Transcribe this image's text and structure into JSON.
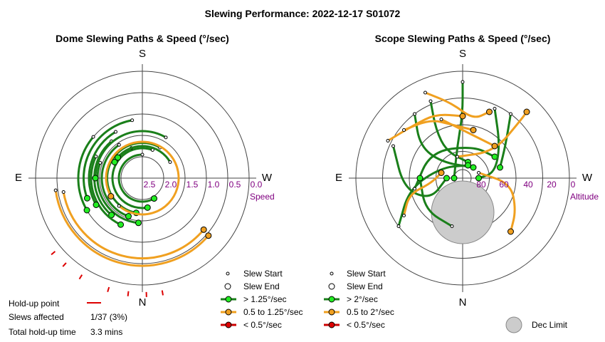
{
  "title": "Slewing Performance: 2022-12-17 S01072",
  "chart_data": [
    {
      "type": "polar-paths",
      "title": "Dome Slewing Paths & Speed (°/sec)",
      "directions": {
        "top": "S",
        "bottom": "N",
        "left": "E",
        "right": "W"
      },
      "radial_axis_label": "Speed",
      "radial_ticks": [
        "2.5",
        "2.0",
        "1.5",
        "1.0",
        "0.5",
        "0.0"
      ],
      "colors": {
        "fast": "#1a7f1a",
        "medium": "#f0a020",
        "slow": "#cc0000",
        "holdup": "#dd0000"
      },
      "legend": [
        {
          "key": "slew_start",
          "label": "Slew Start"
        },
        {
          "key": "slew_end",
          "label": "Slew End"
        },
        {
          "key": "fast",
          "label": "> 1.25°/sec"
        },
        {
          "key": "medium",
          "label": "0.5 to 1.25°/sec"
        },
        {
          "key": "slow",
          "label": "< 0.5°/sec"
        }
      ],
      "arcs": [
        {
          "r": 0.22,
          "a0": 270,
          "a1": 60,
          "cls": "fast"
        },
        {
          "r": 0.28,
          "a0": 290,
          "a1": 80,
          "cls": "fast"
        },
        {
          "r": 0.33,
          "a0": 300,
          "a1": 100,
          "cls": "fast"
        },
        {
          "r": 0.38,
          "a0": 235,
          "a1": 110,
          "cls": "fast"
        },
        {
          "r": 0.42,
          "a0": 200,
          "a1": 95,
          "cls": "fast"
        },
        {
          "r": 0.45,
          "a0": 230,
          "a1": 130,
          "cls": "fast"
        },
        {
          "r": 0.48,
          "a0": 205,
          "a1": 115,
          "cls": "fast"
        },
        {
          "r": 0.5,
          "a0": 240,
          "a1": 150,
          "cls": "fast"
        },
        {
          "r": 0.6,
          "a0": 220,
          "a1": 150,
          "cls": "fast"
        },
        {
          "r": 0.55,
          "a0": 260,
          "a1": 160,
          "cls": "fast"
        },
        {
          "r": 0.44,
          "a0": 300,
          "a1": 180,
          "cls": "fast"
        },
        {
          "r": 0.3,
          "a0": 250,
          "a1": 210,
          "cls": "fast"
        },
        {
          "r": 0.3,
          "a0": 330,
          "a1": 220,
          "cls": "fast"
        },
        {
          "r": 0.34,
          "a0": 130,
          "a1": 150,
          "cls": "medium"
        },
        {
          "r": 0.82,
          "a0": 172,
          "a1": 41,
          "cls": "medium"
        },
        {
          "r": 0.75,
          "a0": 170,
          "a1": 40,
          "cls": "medium"
        }
      ],
      "holdup_angles": [
        100,
        92,
        83,
        73,
        58,
        48,
        40
      ]
    },
    {
      "type": "polar-paths",
      "title": "Scope Slewing Paths & Speed (°/sec)",
      "directions": {
        "top": "S",
        "bottom": "N",
        "left": "E",
        "right": "W"
      },
      "radial_axis_label": "Altitude",
      "radial_ticks": [
        "80",
        "60",
        "40",
        "20",
        "0"
      ],
      "colors": {
        "fast": "#1a7f1a",
        "medium": "#f0a020",
        "slow": "#cc0000",
        "dec_limit": "#cccccc"
      },
      "legend": [
        {
          "key": "slew_start",
          "label": "Slew Start"
        },
        {
          "key": "slew_end",
          "label": "Slew End"
        },
        {
          "key": "fast",
          "label": "> 2°/sec"
        },
        {
          "key": "medium",
          "label": "0.5 to 2°/sec"
        },
        {
          "key": "slow",
          "label": "< 0.5°/sec"
        }
      ],
      "dec_limit_label": "Dec Limit",
      "paths": [
        {
          "cls": "fast",
          "pts": [
            [
              0,
              -0.9
            ],
            [
              0,
              -0.6
            ],
            [
              -0.05,
              -0.3
            ],
            [
              -0.08,
              0.0
            ]
          ]
        },
        {
          "cls": "fast",
          "pts": [
            [
              -0.3,
              -0.72
            ],
            [
              -0.25,
              -0.45
            ],
            [
              -0.15,
              -0.25
            ],
            [
              0.05,
              -0.15
            ]
          ]
        },
        {
          "cls": "fast",
          "pts": [
            [
              -0.45,
              -0.6
            ],
            [
              -0.4,
              -0.3
            ],
            [
              -0.2,
              -0.15
            ],
            [
              0.1,
              -0.1
            ]
          ]
        },
        {
          "cls": "fast",
          "pts": [
            [
              -0.65,
              -0.3
            ],
            [
              -0.55,
              0.1
            ],
            [
              -0.3,
              0.2
            ],
            [
              -0.15,
              0.0
            ]
          ]
        },
        {
          "cls": "fast",
          "pts": [
            [
              -0.6,
              0.45
            ],
            [
              -0.5,
              0.1
            ],
            [
              -0.2,
              -0.1
            ],
            [
              0.05,
              -0.12
            ]
          ]
        },
        {
          "cls": "fast",
          "pts": [
            [
              -0.45,
              0.1
            ],
            [
              -0.3,
              -0.25
            ],
            [
              0.1,
              -0.3
            ],
            [
              0.3,
              -0.2
            ]
          ]
        },
        {
          "cls": "fast",
          "pts": [
            [
              0.3,
              -0.65
            ],
            [
              0.35,
              -0.3
            ],
            [
              0.3,
              -0.05
            ],
            [
              0.15,
              0.0
            ]
          ]
        },
        {
          "cls": "fast",
          "pts": [
            [
              0.45,
              -0.6
            ],
            [
              0.4,
              -0.3
            ],
            [
              0.35,
              -0.1
            ]
          ]
        },
        {
          "cls": "fast",
          "pts": [
            [
              -0.1,
              0.45
            ],
            [
              -0.35,
              0.3
            ],
            [
              -0.4,
              0.0
            ]
          ]
        },
        {
          "cls": "medium",
          "pts": [
            [
              -0.35,
              -0.8
            ],
            [
              -0.1,
              -0.7
            ],
            [
              0.1,
              -0.55
            ],
            [
              0.25,
              -0.62
            ]
          ]
        },
        {
          "cls": "medium",
          "pts": [
            [
              -0.7,
              -0.35
            ],
            [
              -0.45,
              -0.5
            ],
            [
              -0.25,
              -0.6
            ],
            [
              0.0,
              -0.58
            ]
          ]
        },
        {
          "cls": "medium",
          "pts": [
            [
              -0.55,
              -0.45
            ],
            [
              -0.3,
              -0.55
            ],
            [
              -0.1,
              -0.5
            ],
            [
              0.1,
              -0.45
            ]
          ]
        },
        {
          "cls": "medium",
          "pts": [
            [
              -0.55,
              0.35
            ],
            [
              -0.5,
              0.15
            ],
            [
              -0.3,
              0.05
            ],
            [
              -0.2,
              -0.05
            ]
          ]
        },
        {
          "cls": "medium",
          "pts": [
            [
              0.15,
              -0.05
            ],
            [
              0.45,
              0.05
            ],
            [
              0.5,
              0.3
            ],
            [
              0.45,
              0.5
            ]
          ]
        },
        {
          "cls": "medium",
          "pts": [
            [
              -0.05,
              -0.2
            ],
            [
              0.3,
              -0.25
            ],
            [
              0.55,
              -0.55
            ],
            [
              0.6,
              -0.62
            ]
          ]
        },
        {
          "cls": "medium",
          "pts": [
            [
              -0.2,
              -0.55
            ],
            [
              0.1,
              -0.4
            ],
            [
              0.3,
              -0.3
            ]
          ]
        }
      ]
    }
  ],
  "holdup": {
    "label": "Hold-up point",
    "slews_label": "Slews affected",
    "slews_value": "1/37 (3%)",
    "time_label": "Total hold-up time",
    "time_value": "3.3 mins"
  }
}
